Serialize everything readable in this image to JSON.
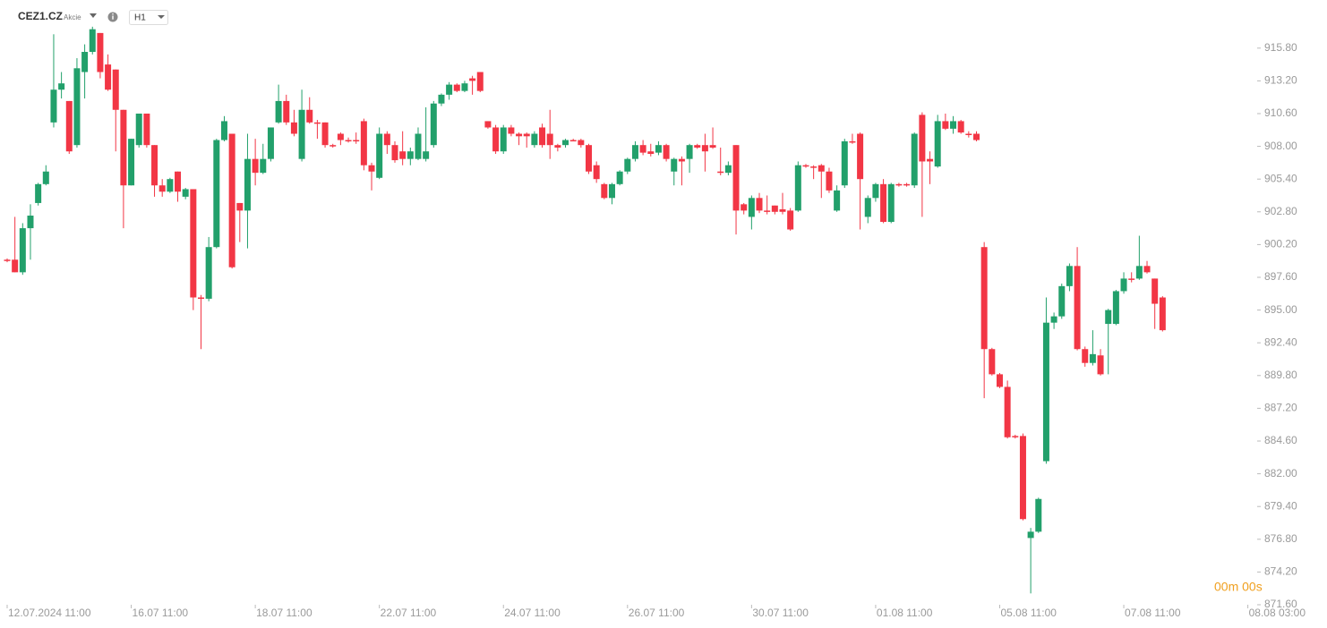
{
  "header": {
    "symbol": "CEZ1.CZ",
    "instrument_type": "Akcie",
    "timeframe": "H1"
  },
  "countdown": "00m 00s",
  "chart_data": {
    "type": "candlestick",
    "up_color": "#22a06b",
    "down_color": "#f23645",
    "grid": false,
    "ylim": [
      871.6,
      918.2
    ],
    "yticks": [
      {
        "value": 871.6,
        "label": "871.60"
      },
      {
        "value": 874.2,
        "label": "874.20"
      },
      {
        "value": 876.8,
        "label": "876.80"
      },
      {
        "value": 879.4,
        "label": "879.40"
      },
      {
        "value": 882,
        "label": "882.00"
      },
      {
        "value": 884.6,
        "label": "884.60"
      },
      {
        "value": 887.2,
        "label": "887.20"
      },
      {
        "value": 889.8,
        "label": "889.80"
      },
      {
        "value": 892.4,
        "label": "892.40"
      },
      {
        "value": 895,
        "label": "895.00"
      },
      {
        "value": 897.6,
        "label": "897.60"
      },
      {
        "value": 900.2,
        "label": "900.20"
      },
      {
        "value": 902.8,
        "label": "902.80"
      },
      {
        "value": 905.4,
        "label": "905.40"
      },
      {
        "value": 908,
        "label": "908.00"
      },
      {
        "value": 910.6,
        "label": "910.60"
      },
      {
        "value": 913.2,
        "label": "913.20"
      },
      {
        "value": 915.8,
        "label": "915.80"
      }
    ],
    "categories": [
      "12.07.2024 11:00",
      null,
      null,
      null,
      null,
      null,
      null,
      null,
      null,
      null,
      null,
      null,
      null,
      null,
      null,
      null,
      "16.07 11:00",
      null,
      null,
      null,
      null,
      null,
      null,
      null,
      null,
      null,
      null,
      null,
      null,
      null,
      null,
      null,
      "18.07 11:00",
      null,
      null,
      null,
      null,
      null,
      null,
      null,
      null,
      null,
      null,
      null,
      null,
      null,
      null,
      null,
      "22.07 11:00",
      null,
      null,
      null,
      null,
      null,
      null,
      null,
      null,
      null,
      null,
      null,
      null,
      null,
      null,
      null,
      "24.07 11:00",
      null,
      null,
      null,
      null,
      null,
      null,
      null,
      null,
      null,
      null,
      null,
      null,
      null,
      null,
      null,
      "26.07 11:00",
      null,
      null,
      null,
      null,
      null,
      null,
      null,
      null,
      null,
      null,
      null,
      null,
      null,
      null,
      null,
      "30.07 11:00",
      null,
      null,
      null,
      null,
      null,
      null,
      null,
      null,
      null,
      null,
      null,
      null,
      null,
      null,
      null,
      "01.08 11:00",
      null,
      null,
      null,
      null,
      null,
      null,
      null,
      null,
      null,
      null,
      null,
      null,
      null,
      null,
      null,
      "05.08 11:00",
      null,
      null,
      null,
      null,
      null,
      null,
      null,
      null,
      null,
      null,
      null,
      null,
      null,
      null,
      null,
      "07.08 11:00",
      null,
      null,
      null,
      null,
      null,
      null,
      null,
      null,
      null,
      null,
      null,
      null,
      null,
      null,
      null,
      "08.08 03:00"
    ],
    "open": [
      899.0,
      899.0,
      898.0,
      901.5,
      903.5,
      905.0,
      909.9,
      912.5,
      911.6,
      908.1,
      913.9,
      915.5,
      917.0,
      914.5,
      914.1,
      910.9,
      904.9,
      908.1,
      910.6,
      908.1,
      904.9,
      904.4,
      906.0,
      904.0,
      904.6,
      896.0,
      895.9,
      900.0,
      908.5,
      909.0,
      903.5,
      902.9,
      907.0,
      905.9,
      907.0,
      909.9,
      911.6,
      909.9,
      907.0,
      910.9,
      909.9,
      909.9,
      908.1,
      909.0,
      908.5,
      908.5,
      910.0,
      906.5,
      905.5,
      909.0,
      908.1,
      907.6,
      907.0,
      907.0,
      907.0,
      908.1,
      911.4,
      912.1,
      912.9,
      912.4,
      913.4,
      913.9,
      910.0,
      909.5,
      907.6,
      909.5,
      909.0,
      909.0,
      908.1,
      909.5,
      909.0,
      908.1,
      908.1,
      908.5,
      908.5,
      908.1,
      906.5,
      905.0,
      903.9,
      905.0,
      906.0,
      907.0,
      908.1,
      907.6,
      907.5,
      908.1,
      906.0,
      907.0,
      907.0,
      908.1,
      908.1,
      908.1,
      906.0,
      905.9,
      908.1,
      903.4,
      902.4,
      903.9,
      902.9,
      903.3,
      903.0,
      902.9,
      902.9,
      906.5,
      906.4,
      906.5,
      906.0,
      902.9,
      904.9,
      908.4,
      909.0,
      902.4,
      903.9,
      905.0,
      902.0,
      905.0,
      905.0,
      904.9,
      910.5,
      907.0,
      906.4,
      910.0,
      909.4,
      910.0,
      909.0,
      909.0,
      900.0,
      891.9,
      889.9,
      888.9,
      885.0,
      885.0,
      876.9,
      877.4,
      883.0,
      894.0,
      894.5,
      896.9,
      898.5,
      891.9,
      890.8,
      891.4,
      893.9,
      893.9,
      896.5,
      897.5,
      897.5,
      898.5,
      897.5,
      896.0,
      null,
      null,
      null,
      null,
      null,
      null,
      null,
      null,
      null,
      null,
      null
    ],
    "high": [
      899.1,
      902.4,
      901.9,
      903.4,
      905.1,
      906.5,
      916.9,
      913.9,
      911.6,
      915.0,
      916.1,
      917.5,
      917.0,
      915.3,
      914.1,
      910.9,
      908.6,
      910.6,
      910.6,
      908.1,
      905.4,
      905.5,
      906.0,
      904.7,
      904.6,
      896.2,
      900.8,
      908.6,
      910.4,
      909.0,
      903.5,
      909.0,
      908.6,
      908.2,
      909.5,
      912.9,
      912.1,
      910.9,
      912.5,
      911.9,
      910.1,
      909.9,
      908.2,
      909.1,
      908.7,
      909.1,
      910.2,
      906.7,
      909.5,
      909.2,
      908.4,
      909.2,
      907.9,
      909.5,
      911.1,
      911.6,
      912.2,
      913.1,
      913.0,
      913.2,
      913.6,
      913.9,
      910.0,
      909.7,
      909.7,
      909.7,
      909.1,
      909.1,
      909.2,
      909.8,
      910.9,
      908.2,
      908.6,
      908.6,
      908.6,
      908.2,
      906.8,
      905.1,
      905.1,
      906.1,
      907.1,
      908.4,
      908.5,
      908.2,
      908.4,
      908.2,
      907.1,
      907.2,
      908.2,
      908.2,
      909.0,
      909.5,
      907.9,
      906.8,
      908.1,
      903.5,
      904.1,
      904.3,
      904.1,
      903.3,
      904.3,
      903.1,
      906.8,
      906.6,
      906.5,
      906.6,
      906.3,
      904.9,
      908.6,
      909.0,
      909.1,
      904.1,
      905.1,
      905.4,
      905.1,
      905.1,
      905.1,
      909.1,
      910.7,
      907.6,
      910.5,
      910.6,
      910.4,
      910.1,
      909.2,
      909.2,
      900.4,
      892.0,
      890.0,
      889.4,
      885.1,
      885.2,
      877.7,
      880.1,
      896.0,
      894.8,
      897.1,
      898.7,
      900.0,
      892.1,
      893.4,
      891.9,
      895.1,
      896.6,
      898.0,
      898.0,
      900.9,
      898.9,
      897.5,
      896.1,
      null,
      null,
      null,
      null,
      null,
      null,
      null,
      null,
      null,
      null,
      null
    ],
    "low": [
      898.8,
      898.0,
      897.8,
      899.0,
      903.3,
      904.9,
      909.5,
      911.8,
      907.4,
      907.9,
      911.8,
      915.3,
      913.4,
      912.4,
      907.6,
      901.5,
      904.9,
      907.9,
      907.9,
      904.0,
      904.0,
      904.3,
      903.6,
      903.8,
      895.0,
      891.9,
      895.7,
      899.9,
      908.4,
      898.3,
      900.4,
      899.9,
      904.9,
      905.8,
      906.8,
      909.8,
      909.7,
      908.8,
      906.8,
      909.8,
      908.6,
      907.9,
      907.9,
      908.1,
      908.3,
      908.2,
      906.1,
      904.5,
      905.4,
      907.4,
      906.7,
      906.5,
      906.5,
      906.9,
      906.8,
      907.9,
      911.2,
      911.7,
      912.3,
      912.3,
      912.1,
      912.3,
      909.4,
      907.4,
      907.4,
      908.8,
      908.1,
      907.9,
      907.9,
      907.9,
      907.0,
      907.6,
      907.9,
      908.4,
      907.9,
      905.8,
      905.1,
      903.8,
      903.4,
      904.9,
      905.8,
      906.8,
      907.3,
      907.2,
      907.3,
      906.8,
      904.9,
      904.9,
      905.9,
      907.8,
      906.0,
      907.8,
      905.7,
      905.7,
      901.0,
      902.6,
      901.4,
      902.7,
      902.6,
      902.6,
      902.6,
      901.3,
      902.8,
      906.3,
      905.4,
      903.9,
      904.3,
      902.8,
      904.7,
      908.2,
      901.4,
      901.9,
      903.6,
      901.9,
      901.9,
      904.8,
      904.8,
      904.7,
      902.4,
      905.0,
      906.3,
      909.3,
      909.0,
      909.0,
      908.7,
      908.4,
      888.0,
      889.8,
      888.8,
      884.8,
      884.8,
      878.3,
      872.5,
      877.3,
      882.8,
      893.5,
      894.3,
      896.5,
      891.8,
      890.5,
      890.6,
      889.8,
      889.9,
      893.8,
      896.3,
      897.2,
      897.4,
      897.9,
      893.5,
      893.3,
      null,
      null,
      null,
      null,
      null,
      null,
      null,
      null,
      null,
      null,
      null
    ],
    "close": [
      898.9,
      898.0,
      901.5,
      902.5,
      905.0,
      906.0,
      912.5,
      913.0,
      907.6,
      914.2,
      915.5,
      917.3,
      913.9,
      912.5,
      910.9,
      904.9,
      908.6,
      910.6,
      908.1,
      904.9,
      904.4,
      905.4,
      904.4,
      904.6,
      896.0,
      895.9,
      900.0,
      908.5,
      910.0,
      898.4,
      902.9,
      907.0,
      905.9,
      907.0,
      909.5,
      911.6,
      909.9,
      909.0,
      910.9,
      909.9,
      909.8,
      908.1,
      908.0,
      908.5,
      908.4,
      908.4,
      906.5,
      906.0,
      909.0,
      908.1,
      906.9,
      907.0,
      907.6,
      909.0,
      907.6,
      911.4,
      912.1,
      912.9,
      912.4,
      913.0,
      913.2,
      912.4,
      909.5,
      907.6,
      909.5,
      909.0,
      908.8,
      908.8,
      909.0,
      908.1,
      908.1,
      907.9,
      908.5,
      908.4,
      908.1,
      906.0,
      905.4,
      903.9,
      905.0,
      906.0,
      907.0,
      908.1,
      907.5,
      907.4,
      908.1,
      907.0,
      907.0,
      906.8,
      908.1,
      907.9,
      907.6,
      907.9,
      905.9,
      906.5,
      902.9,
      902.9,
      903.9,
      902.9,
      902.8,
      902.8,
      902.8,
      901.4,
      906.5,
      906.4,
      906.3,
      906.0,
      904.5,
      904.5,
      908.4,
      908.3,
      905.4,
      903.9,
      905.0,
      902.0,
      905.0,
      904.9,
      904.9,
      909.0,
      906.8,
      906.8,
      910.0,
      909.4,
      910.0,
      909.1,
      908.9,
      908.5,
      891.9,
      889.9,
      888.9,
      884.9,
      884.9,
      878.4,
      877.4,
      880.0,
      894.0,
      894.5,
      896.9,
      898.5,
      891.9,
      890.8,
      891.5,
      889.9,
      895.0,
      896.5,
      897.5,
      897.4,
      898.5,
      898.0,
      895.5,
      893.4,
      null,
      null,
      null,
      null,
      null,
      null,
      null,
      null,
      null,
      null,
      null
    ]
  }
}
